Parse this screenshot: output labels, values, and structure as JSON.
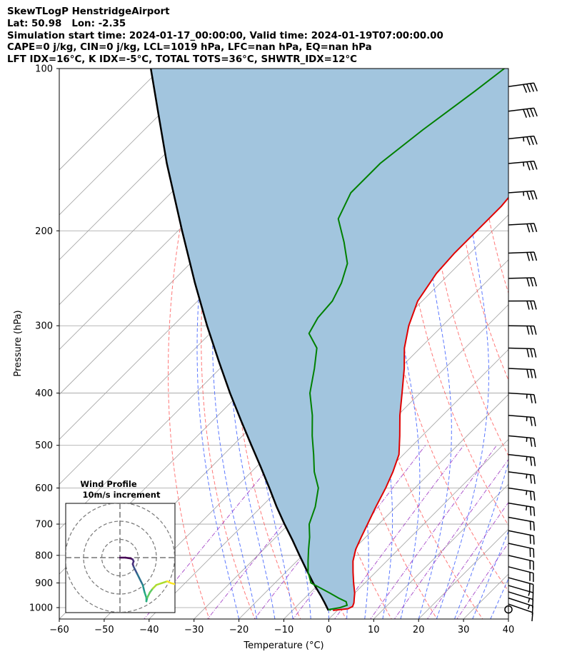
{
  "title_lines": [
    "SkewTLogP HenstridgeAirport",
    "Lat: 50.98   Lon: -2.35",
    "Simulation start time: 2024-01-17_00:00:00, Valid time: 2024-01-19T07:00:00.00",
    "CAPE=0 j/kg, CIN=0 j/kg, LCL=1019 hPa, LFC=nan hPa, EQ=nan hPa",
    "LFT IDX=16°C, K IDX=-5°C, TOTAL TOTS=36°C, SHWTR_IDX=12°C"
  ],
  "chart_data": {
    "type": "skew-t log-p",
    "xlabel": "Temperature (°C)",
    "ylabel": "Pressure (hPa)",
    "xlim": [
      -60,
      40
    ],
    "ylim": [
      1050,
      100
    ],
    "x_ticks": [
      -60,
      -50,
      -40,
      -30,
      -20,
      -10,
      0,
      10,
      20,
      30,
      40
    ],
    "x_tick_labels": [
      "−60",
      "−50",
      "−40",
      "−30",
      "−20",
      "−10",
      "0",
      "10",
      "20",
      "30",
      "40"
    ],
    "y_ticks": [
      1000,
      900,
      800,
      700,
      600,
      500,
      400,
      300,
      200,
      100
    ],
    "y_tick_labels": [
      "1000",
      "900",
      "800",
      "700",
      "600",
      "500",
      "400",
      "300",
      "200",
      "100"
    ],
    "colors": {
      "temperature": "#e00000",
      "dewpoint": "#008000",
      "parcel": "#000000",
      "cin_shade": "#a2c5de",
      "dry_adiabat": "#ff6060",
      "moist_adiabat": "#4060ff",
      "mixing_ratio": "#9a30c0",
      "isotherm": "#a0a0a0",
      "isobar": "#a0a0a0"
    },
    "temperature": {
      "p": [
        1012,
        1005,
        995,
        980,
        960,
        940,
        900,
        860,
        820,
        780,
        740,
        700,
        650,
        600,
        560,
        520,
        480,
        440,
        400,
        360,
        330,
        300,
        270,
        240,
        220,
        200,
        180,
        160,
        140,
        120,
        100
      ],
      "t": [
        -1.0,
        2.0,
        2.5,
        2.0,
        1.0,
        0.0,
        -2.5,
        -5.0,
        -7.5,
        -9.5,
        -11.0,
        -12.5,
        -14.5,
        -16.5,
        -18.5,
        -21.0,
        -25.0,
        -29.5,
        -34.0,
        -39.0,
        -43.5,
        -47.5,
        -51.0,
        -53.0,
        -53.5,
        -53.5,
        -53.5,
        -54.5,
        -55.0,
        -55.5,
        -57.0
      ]
    },
    "dewpoint": {
      "p": [
        1012,
        1008,
        1000,
        990,
        975,
        960,
        940,
        900,
        860,
        820,
        780,
        740,
        700,
        650,
        600,
        560,
        520,
        480,
        440,
        400,
        360,
        330,
        310,
        290,
        270,
        250,
        230,
        210,
        190,
        170,
        150,
        130,
        110,
        100
      ],
      "td": [
        -1.5,
        -2.0,
        0.0,
        1.0,
        0.0,
        -2.5,
        -5.5,
        -12.0,
        -15.0,
        -17.5,
        -20.0,
        -22.5,
        -25.5,
        -28.0,
        -31.5,
        -36.0,
        -40.0,
        -44.5,
        -49.0,
        -54.5,
        -59.0,
        -63.0,
        -68.0,
        -69.5,
        -70.0,
        -72.0,
        -75.0,
        -80.5,
        -87.0,
        -90.0,
        -90.0,
        -88.0,
        -85.0,
        -83.5
      ]
    },
    "parcel": {
      "p": [
        1012,
        980,
        950,
        900,
        850,
        800,
        750,
        700,
        650,
        600,
        550,
        500,
        450,
        400,
        350,
        300,
        250,
        200,
        150,
        120,
        100
      ],
      "t": [
        -2.0,
        -4.5,
        -7.0,
        -11.5,
        -16.0,
        -20.7,
        -25.6,
        -31.0,
        -36.6,
        -42.4,
        -48.8,
        -55.9,
        -63.7,
        -72.3,
        -81.7,
        -92.4,
        -104.6,
        -119.1,
        -137.5,
        -151.1,
        -162.2
      ]
    },
    "wind_barbs": {
      "p": [
        1008,
        985,
        960,
        935,
        910,
        880,
        840,
        800,
        760,
        720,
        680,
        640,
        600,
        560,
        520,
        480,
        440,
        400,
        360,
        330,
        300,
        270,
        245,
        220,
        195,
        170,
        150,
        135,
        120,
        108
      ],
      "speed_kt": [
        0,
        10,
        15,
        15,
        15,
        20,
        20,
        20,
        20,
        20,
        20,
        25,
        25,
        25,
        25,
        25,
        25,
        25,
        30,
        30,
        30,
        30,
        30,
        30,
        30,
        35,
        35,
        35,
        40,
        40
      ]
    },
    "inset": {
      "title": "Wind Profile",
      "subtitle": "10m/s increment",
      "rings_ms": [
        10,
        20,
        30
      ]
    }
  }
}
